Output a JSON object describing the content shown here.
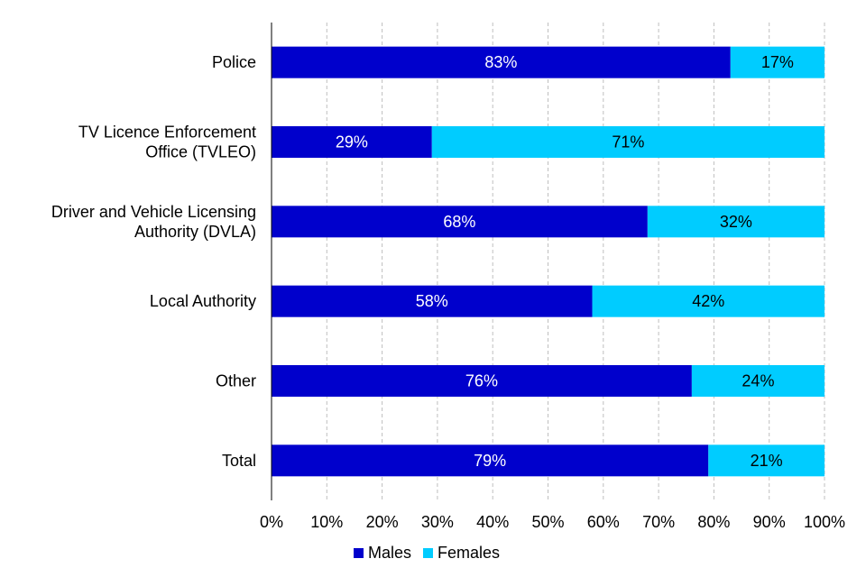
{
  "chart_data": {
    "type": "bar",
    "orientation": "horizontal",
    "stacked": true,
    "categories": [
      [
        "Police"
      ],
      [
        "TV Licence Enforcement",
        "Office (TVLEO)"
      ],
      [
        "Driver and Vehicle Licensing",
        "Authority (DVLA)"
      ],
      [
        "Local Authority"
      ],
      [
        "Other"
      ],
      [
        "Total"
      ]
    ],
    "series": [
      {
        "name": "Males",
        "color": "#0000CC",
        "label_color": "#ffffff",
        "values": [
          83,
          29,
          68,
          58,
          76,
          79
        ]
      },
      {
        "name": "Females",
        "color": "#00CCFF",
        "label_color": "#000000",
        "values": [
          17,
          71,
          32,
          42,
          24,
          21
        ]
      }
    ],
    "xlim": [
      0,
      100
    ],
    "xticks": [
      "0%",
      "10%",
      "20%",
      "30%",
      "40%",
      "50%",
      "60%",
      "70%",
      "80%",
      "90%",
      "100%"
    ],
    "grid": true,
    "legend": "bottom",
    "title": "",
    "xlabel": "",
    "ylabel": ""
  }
}
